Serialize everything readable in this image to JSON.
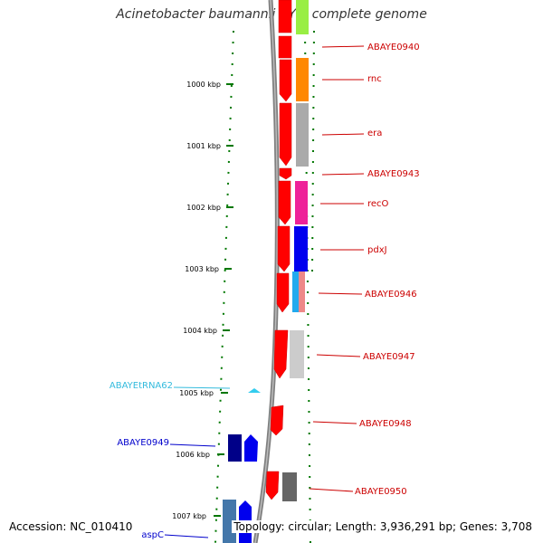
{
  "header": {
    "title": "Acinetobacter baumannii AYE, complete genome"
  },
  "footer": {
    "accession": "Accession: NC_010410",
    "summary": "Topology: circular; Length: 3,936,291 bp; Genes: 3,708"
  },
  "colors": {
    "backbone": "#808080",
    "cds_forward": "#ff0000",
    "gene_label_red": "#cc0000",
    "gene_label_blue": "#0000cc",
    "trna_cyan": "#33ccee",
    "gc_tick_green": "#007700"
  },
  "scale": {
    "ticks": [
      "1000 kbp",
      "1001 kbp",
      "1002 kbp",
      "1003 kbp",
      "1004 kbp",
      "1005 kbp",
      "1006 kbp",
      "1007 kbp"
    ]
  },
  "gene_labels_right": [
    "ABAYE0940",
    "rnc",
    "era",
    "ABAYE0943",
    "recO",
    "pdxJ",
    "ABAYE0946",
    "ABAYE0947",
    "ABAYE0948",
    "ABAYE0950"
  ],
  "gene_labels_left": [
    {
      "name": "ABAYEtRNA62",
      "color": "#33bbdd"
    },
    {
      "name": "ABAYE0949",
      "color": "#0000cc"
    },
    {
      "name": "aspC",
      "color": "#0000cc"
    }
  ]
}
